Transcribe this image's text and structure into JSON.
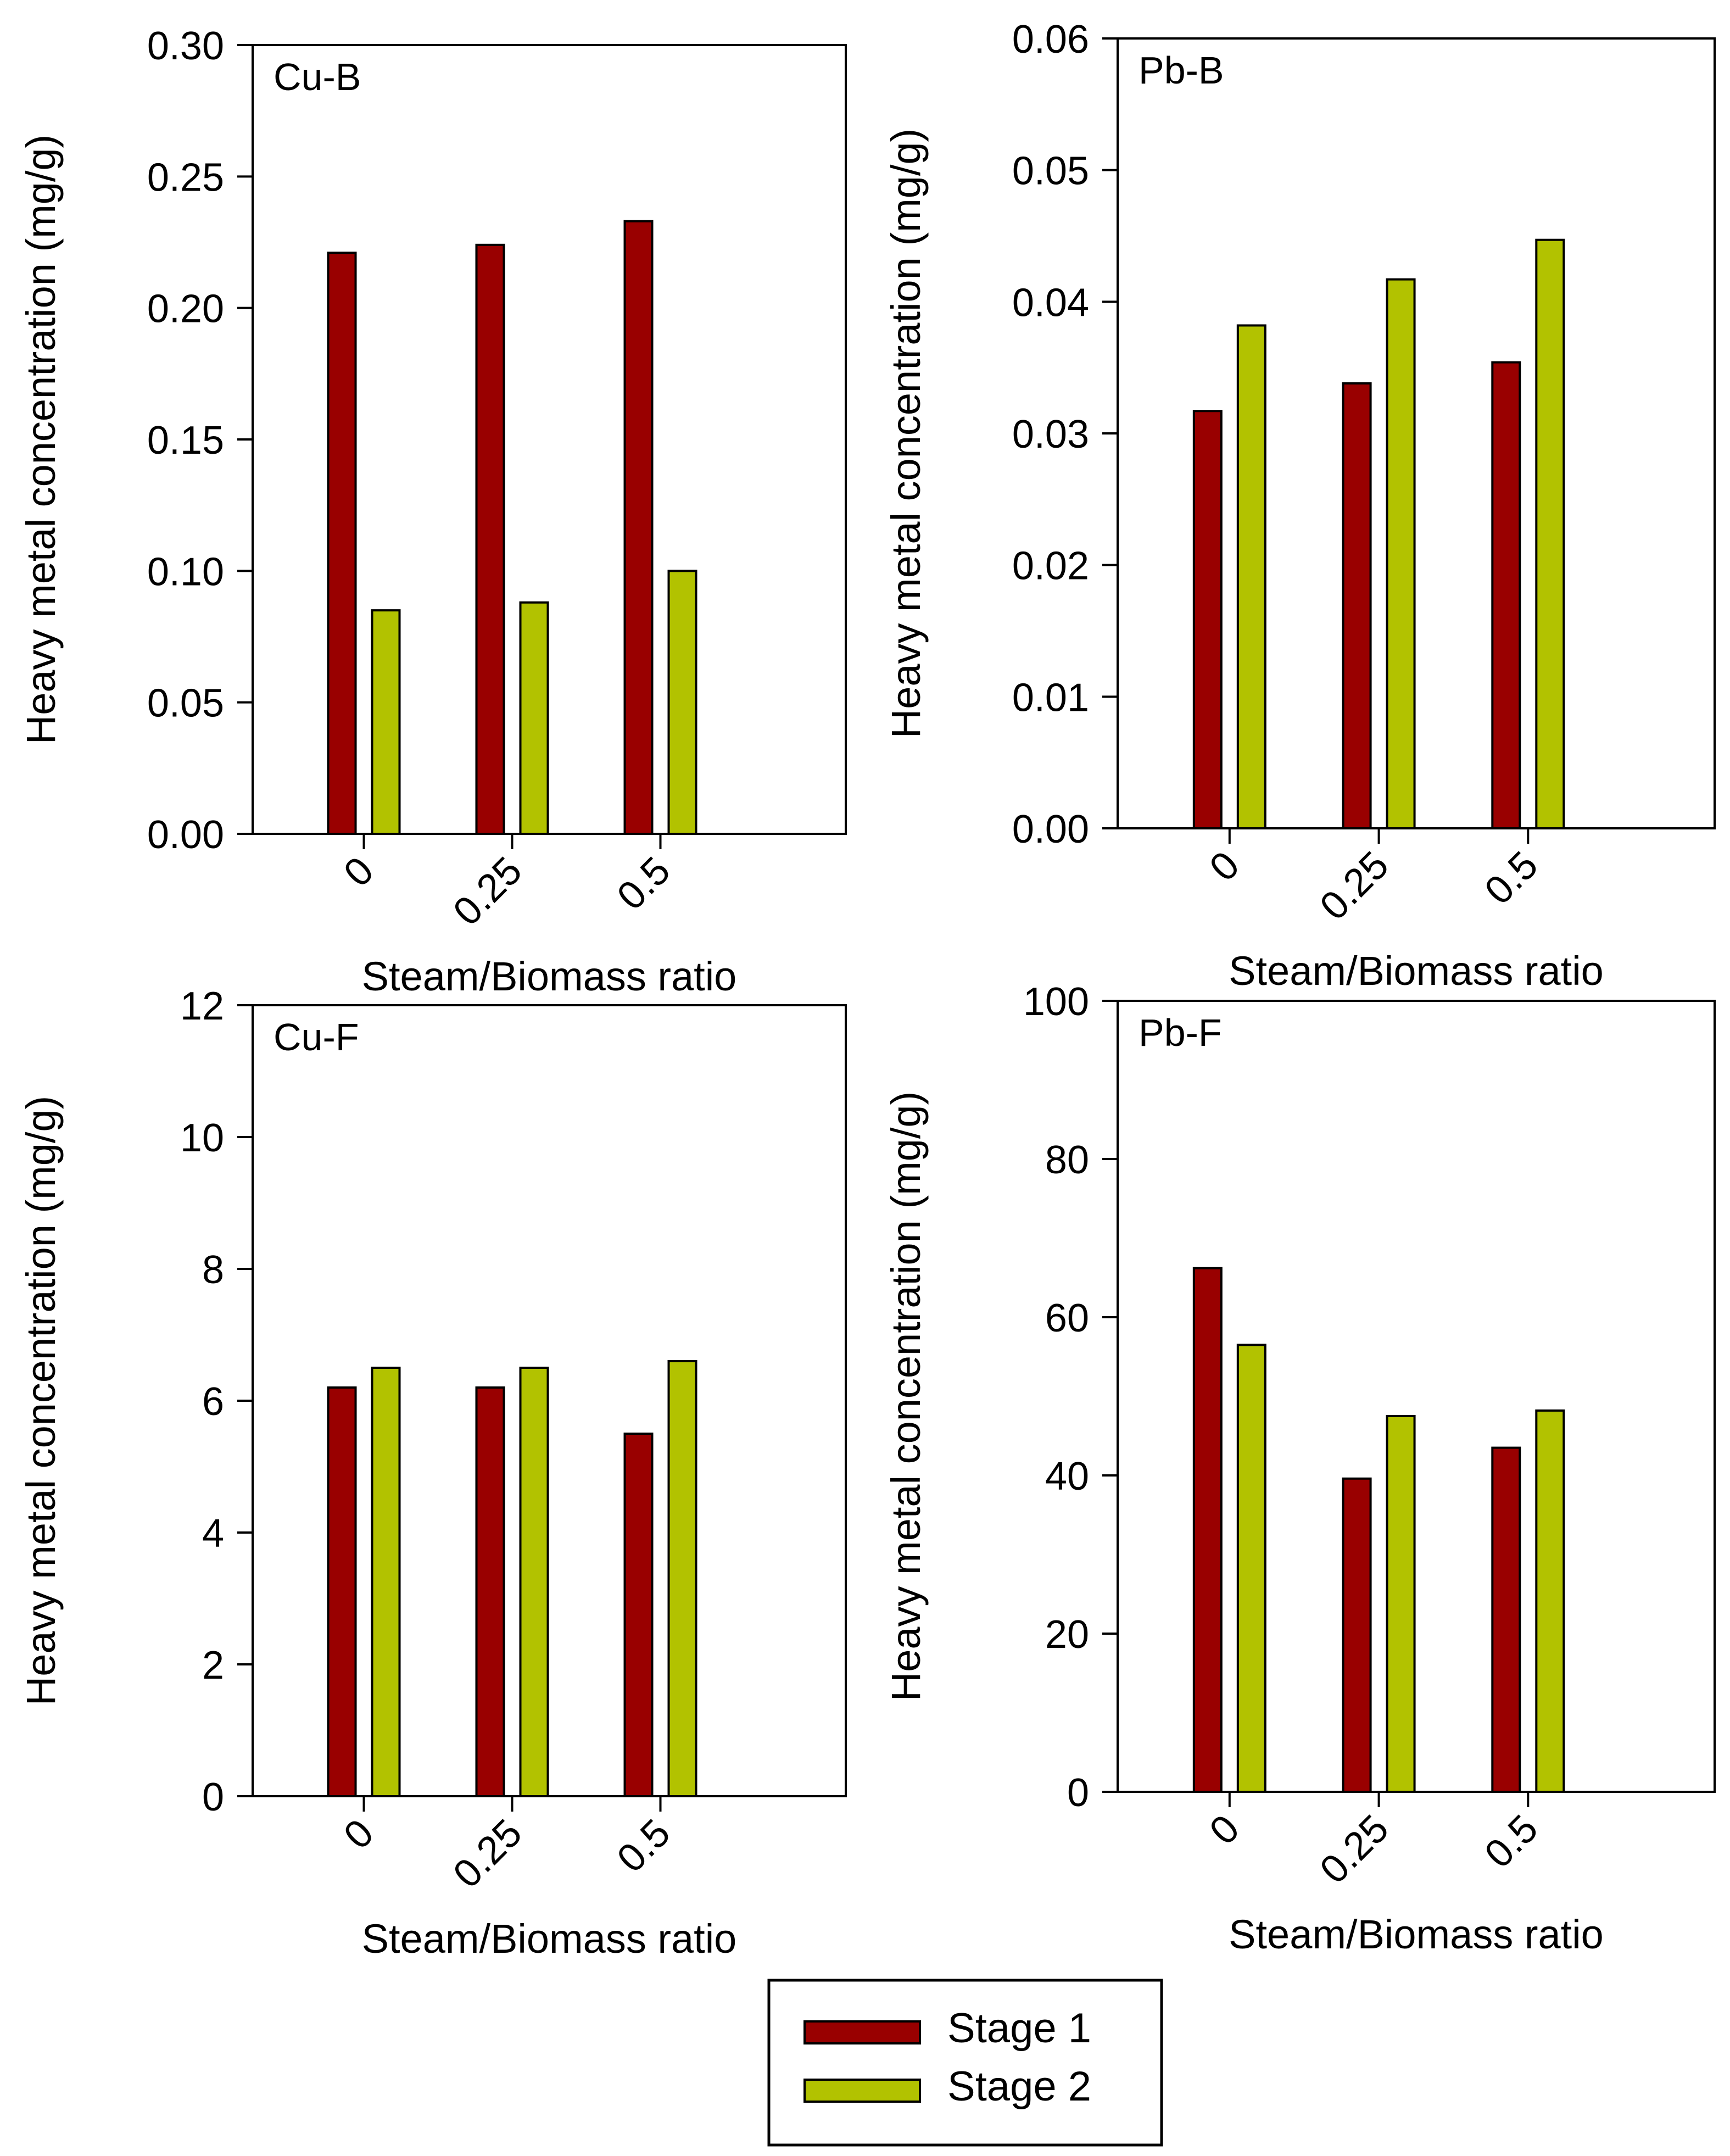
{
  "colors": {
    "stage1": "#990000",
    "stage2": "#b2c200",
    "axis": "#000000",
    "background": "#ffffff"
  },
  "legend": {
    "entries": [
      "Stage 1",
      "Stage 2"
    ],
    "placement": "bottom-center"
  },
  "chart_data": [
    {
      "id": "cu-b",
      "type": "bar",
      "panel_label": "Cu-B",
      "xlabel": "Steam/Biomass ratio",
      "ylabel": "Heavy metal concentration (mg/g)",
      "categories": [
        "0",
        "0.25",
        "0.5"
      ],
      "ylim": [
        0,
        0.3
      ],
      "yticks": [
        "0.00",
        "0.05",
        "0.10",
        "0.15",
        "0.20",
        "0.25",
        "0.30"
      ],
      "grid": false,
      "series": [
        {
          "name": "Stage 1",
          "values": [
            0.221,
            0.224,
            0.233
          ]
        },
        {
          "name": "Stage 2",
          "values": [
            0.085,
            0.088,
            0.1
          ]
        }
      ]
    },
    {
      "id": "pb-b",
      "type": "bar",
      "panel_label": "Pb-B",
      "xlabel": "Steam/Biomass ratio",
      "ylabel": "Heavy metal concentration (mg/g)",
      "categories": [
        "0",
        "0.25",
        "0.5"
      ],
      "ylim": [
        0,
        0.06
      ],
      "yticks": [
        "0.00",
        "0.01",
        "0.02",
        "0.03",
        "0.04",
        "0.05",
        "0.06"
      ],
      "grid": false,
      "series": [
        {
          "name": "Stage 1",
          "values": [
            0.0317,
            0.0338,
            0.0354
          ]
        },
        {
          "name": "Stage 2",
          "values": [
            0.0382,
            0.0417,
            0.0447
          ]
        }
      ]
    },
    {
      "id": "cu-f",
      "type": "bar",
      "panel_label": "Cu-F",
      "xlabel": "Steam/Biomass ratio",
      "ylabel": "Heavy metal concentration (mg/g)",
      "categories": [
        "0",
        "0.25",
        "0.5"
      ],
      "ylim": [
        0,
        12
      ],
      "yticks": [
        "0",
        "2",
        "4",
        "6",
        "8",
        "10",
        "12"
      ],
      "grid": false,
      "series": [
        {
          "name": "Stage 1",
          "values": [
            6.2,
            6.2,
            5.5
          ]
        },
        {
          "name": "Stage 2",
          "values": [
            6.5,
            6.5,
            6.6
          ]
        }
      ]
    },
    {
      "id": "pb-f",
      "type": "bar",
      "panel_label": "Pb-F",
      "xlabel": "Steam/Biomass ratio",
      "ylabel": "Heavy metal concentration (mg/g)",
      "categories": [
        "0",
        "0.25",
        "0.5"
      ],
      "ylim": [
        0,
        100
      ],
      "yticks": [
        "0",
        "20",
        "40",
        "60",
        "80",
        "100"
      ],
      "grid": false,
      "series": [
        {
          "name": "Stage 1",
          "values": [
            66.2,
            39.6,
            43.5
          ]
        },
        {
          "name": "Stage 2",
          "values": [
            56.5,
            47.5,
            48.2
          ]
        }
      ]
    }
  ]
}
